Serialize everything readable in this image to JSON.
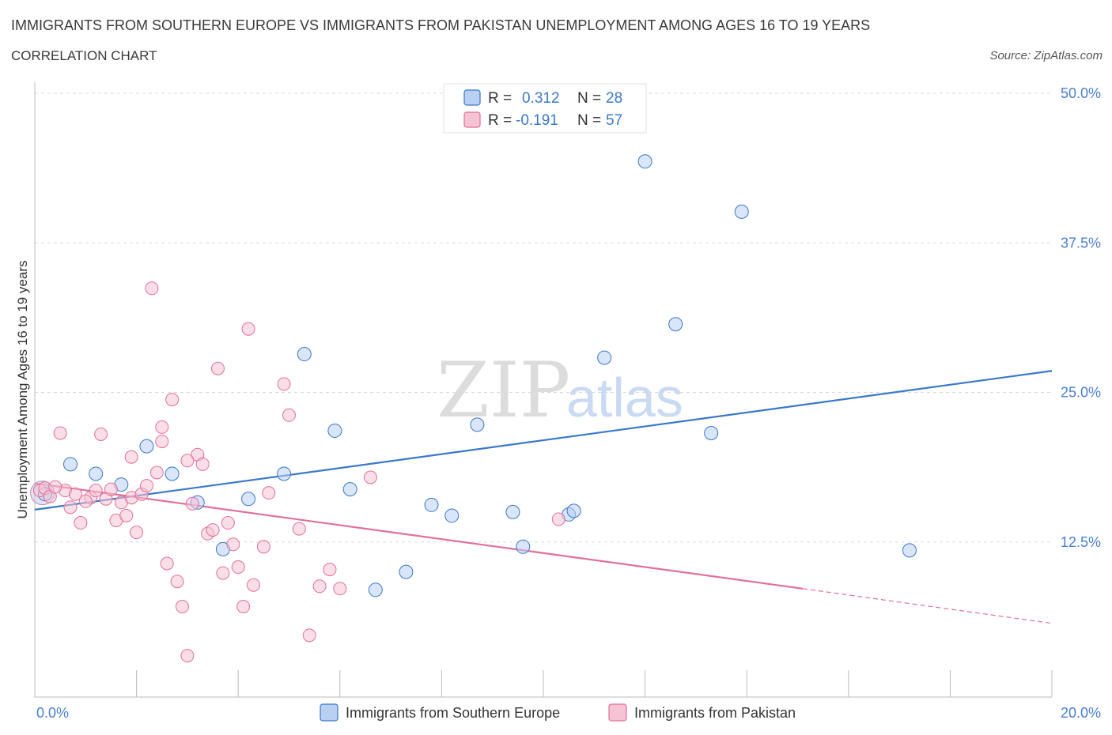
{
  "title": "IMMIGRANTS FROM SOUTHERN EUROPE VS IMMIGRANTS FROM PAKISTAN UNEMPLOYMENT AMONG AGES 16 TO 19 YEARS",
  "subtitle": "CORRELATION CHART",
  "source": "Source: ZipAtlas.com",
  "watermark": {
    "zip": "ZIP",
    "atlas": "atlas"
  },
  "colors": {
    "blue": "#3a78c9",
    "blue_fill": "#b9d0f2",
    "pink": "#e0709a",
    "pink_fill": "#f5c3d3",
    "tick": "#4a7fd1",
    "grid": "#d8d8d8"
  },
  "legend_top": [
    {
      "r_label": "R =",
      "r_value": "0.312",
      "n_label": "N =",
      "n_value": "28"
    },
    {
      "r_label": "R =",
      "r_value": "-0.191",
      "n_label": "N =",
      "n_value": "57"
    }
  ],
  "chart_data": {
    "type": "scatter",
    "title": "IMMIGRANTS FROM SOUTHERN EUROPE VS IMMIGRANTS FROM PAKISTAN UNEMPLOYMENT AMONG AGES 16 TO 19 YEARS",
    "ylabel": "Unemployment Among Ages 16 to 19 years",
    "xlabel": "",
    "xlim": [
      0,
      20
    ],
    "ylim": [
      0,
      50
    ],
    "x_tick_labels": [
      "0.0%",
      "20.0%"
    ],
    "y_ticks": [
      {
        "value": 12.5,
        "label": "12.5%"
      },
      {
        "value": 25,
        "label": "25.0%"
      },
      {
        "value": 37.5,
        "label": "37.5%"
      },
      {
        "value": 50,
        "label": "50.0%"
      }
    ],
    "series": [
      {
        "name": "Immigrants from Southern Europe",
        "color": "#3a78c9",
        "R": 0.312,
        "N": 28,
        "trend": {
          "x0": 0,
          "y0": 15.2,
          "x1": 20,
          "y1": 26.8
        },
        "points": [
          [
            0.2,
            16.5
          ],
          [
            0.7,
            19.0
          ],
          [
            1.2,
            18.2
          ],
          [
            1.7,
            17.3
          ],
          [
            2.2,
            20.5
          ],
          [
            2.7,
            18.2
          ],
          [
            3.2,
            15.8
          ],
          [
            3.7,
            11.9
          ],
          [
            4.2,
            16.1
          ],
          [
            4.9,
            18.2
          ],
          [
            5.3,
            28.2
          ],
          [
            5.9,
            21.8
          ],
          [
            6.2,
            16.9
          ],
          [
            6.7,
            8.5
          ],
          [
            7.3,
            10.0
          ],
          [
            7.8,
            15.6
          ],
          [
            8.2,
            14.7
          ],
          [
            8.7,
            22.3
          ],
          [
            9.4,
            15.0
          ],
          [
            9.6,
            12.1
          ],
          [
            10.5,
            14.8
          ],
          [
            10.6,
            15.1
          ],
          [
            11.2,
            27.9
          ],
          [
            12.0,
            44.3
          ],
          [
            12.6,
            30.7
          ],
          [
            13.3,
            21.6
          ],
          [
            13.9,
            40.1
          ],
          [
            17.2,
            11.8
          ]
        ]
      },
      {
        "name": "Immigrants from Pakistan",
        "color": "#e0709a",
        "R": -0.191,
        "N": 57,
        "trend": {
          "x0": 0,
          "y0": 17.4,
          "x1": 15.1,
          "y1": 8.6
        },
        "trend_dashed": {
          "x0": 15.1,
          "y0": 8.6,
          "x1": 20,
          "y1": 5.7
        },
        "points": [
          [
            0.1,
            16.8
          ],
          [
            0.2,
            17.0
          ],
          [
            0.3,
            16.3
          ],
          [
            0.5,
            21.6
          ],
          [
            0.6,
            16.8
          ],
          [
            0.7,
            15.4
          ],
          [
            0.8,
            16.5
          ],
          [
            0.9,
            14.1
          ],
          [
            1.1,
            16.2
          ],
          [
            1.2,
            16.8
          ],
          [
            1.3,
            21.5
          ],
          [
            1.4,
            16.1
          ],
          [
            1.5,
            16.9
          ],
          [
            1.6,
            14.3
          ],
          [
            1.7,
            15.8
          ],
          [
            1.8,
            14.7
          ],
          [
            1.9,
            16.2
          ],
          [
            2.0,
            13.3
          ],
          [
            2.1,
            16.5
          ],
          [
            2.2,
            17.2
          ],
          [
            2.3,
            33.7
          ],
          [
            2.4,
            18.3
          ],
          [
            2.5,
            20.9
          ],
          [
            2.6,
            10.7
          ],
          [
            2.7,
            24.4
          ],
          [
            2.8,
            9.2
          ],
          [
            2.9,
            7.1
          ],
          [
            3.0,
            3.0
          ],
          [
            3.1,
            15.7
          ],
          [
            3.2,
            19.8
          ],
          [
            3.3,
            19.0
          ],
          [
            3.4,
            13.2
          ],
          [
            3.5,
            13.5
          ],
          [
            3.6,
            27.0
          ],
          [
            3.7,
            9.9
          ],
          [
            3.8,
            14.1
          ],
          [
            3.9,
            12.3
          ],
          [
            4.0,
            10.4
          ],
          [
            4.1,
            7.1
          ],
          [
            4.2,
            30.3
          ],
          [
            4.3,
            8.9
          ],
          [
            4.5,
            12.1
          ],
          [
            4.6,
            16.6
          ],
          [
            4.9,
            25.7
          ],
          [
            5.0,
            23.1
          ],
          [
            5.2,
            13.6
          ],
          [
            5.4,
            4.7
          ],
          [
            5.6,
            8.8
          ],
          [
            5.8,
            10.2
          ],
          [
            6.0,
            8.6
          ],
          [
            6.6,
            17.9
          ],
          [
            1.0,
            15.9
          ],
          [
            1.9,
            19.6
          ],
          [
            2.5,
            22.1
          ],
          [
            0.4,
            17.1
          ],
          [
            3.0,
            19.3
          ],
          [
            10.3,
            14.4
          ]
        ]
      }
    ]
  }
}
